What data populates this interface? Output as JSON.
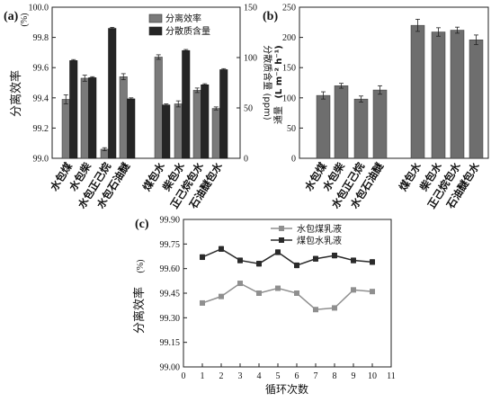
{
  "figure": {
    "colors": {
      "light_bar": "#7a7a7a",
      "dark_bar": "#252525",
      "light_line": "#8f8f8f",
      "dark_line": "#2a2a2a"
    }
  },
  "chart_data": [
    {
      "panel": "(a)",
      "type": "bar",
      "categories": [
        "水包煤",
        "水包柴",
        "水包正己烷",
        "水包石油醚",
        "煤包水",
        "柴包水",
        "正己烷包水",
        "石油醚包水"
      ],
      "series": [
        {
          "name": "分离效率",
          "axis": "left",
          "values": [
            99.39,
            99.53,
            99.06,
            99.54,
            99.67,
            99.36,
            99.45,
            99.33
          ],
          "errors": [
            0.03,
            0.02,
            0.01,
            0.02,
            0.015,
            0.02,
            0.015,
            0.01
          ]
        },
        {
          "name": "分散质含量",
          "axis": "right",
          "values": [
            97,
            80,
            129,
            59,
            53,
            107,
            73,
            88
          ],
          "errors": [
            1,
            1,
            1,
            1,
            1,
            1,
            1,
            1
          ]
        }
      ],
      "ylabel_left": "分离效率",
      "ylabel_left_unit": "(%)",
      "ylabel_right": "分散质含量 (ppm)",
      "ylim_left": [
        99.0,
        100.0
      ],
      "yticks_left": [
        "99.0",
        "99.2",
        "99.4",
        "99.6",
        "99.8",
        "100.0"
      ],
      "ylim_right": [
        0,
        150
      ],
      "yticks_right": [
        "0",
        "50",
        "100",
        "150"
      ],
      "legend_position": "top-right"
    },
    {
      "panel": "(b)",
      "type": "bar",
      "categories": [
        "水包煤",
        "水包柴",
        "水包正己烷",
        "水包石油醚",
        "煤包水",
        "柴包水",
        "正己烷包水",
        "石油醚包水"
      ],
      "series": [
        {
          "name": "",
          "values": [
            104,
            120,
            98,
            113,
            220,
            209,
            212,
            196
          ],
          "errors": [
            6,
            4,
            5,
            7,
            10,
            7,
            5,
            8
          ]
        }
      ],
      "ylabel": "通量",
      "ylabel_unit": "(L m⁻² h⁻¹)",
      "ylim": [
        0,
        250
      ],
      "yticks": [
        "0",
        "50",
        "100",
        "150",
        "200",
        "250"
      ]
    },
    {
      "panel": "(c)",
      "type": "line",
      "x": [
        1,
        2,
        3,
        4,
        5,
        6,
        7,
        8,
        9,
        10
      ],
      "series": [
        {
          "name": "水包煤乳液",
          "values": [
            99.39,
            99.43,
            99.51,
            99.45,
            99.48,
            99.45,
            99.35,
            99.36,
            99.47,
            99.46
          ],
          "errors": [
            0.01,
            0.01,
            0.01,
            0.01,
            0.01,
            0.01,
            0.01,
            0.01,
            0.01,
            0.01
          ]
        },
        {
          "name": "煤包水乳液",
          "values": [
            99.67,
            99.72,
            99.65,
            99.63,
            99.7,
            99.62,
            99.66,
            99.68,
            99.65,
            99.64
          ],
          "errors": [
            0.015,
            0.015,
            0.015,
            0.015,
            0.015,
            0.015,
            0.015,
            0.015,
            0.015,
            0.015
          ]
        }
      ],
      "xlabel": "循环次数",
      "ylabel": "分离效率",
      "ylabel_unit": "(%)",
      "xlim": [
        0,
        11
      ],
      "xticks": [
        "0",
        "1",
        "2",
        "3",
        "4",
        "5",
        "6",
        "7",
        "8",
        "9",
        "10",
        "11"
      ],
      "ylim": [
        99.0,
        99.9
      ],
      "yticks": [
        "99.00",
        "99.15",
        "99.30",
        "99.45",
        "99.60",
        "99.75",
        "99.90"
      ],
      "legend_position": "top-center"
    }
  ]
}
